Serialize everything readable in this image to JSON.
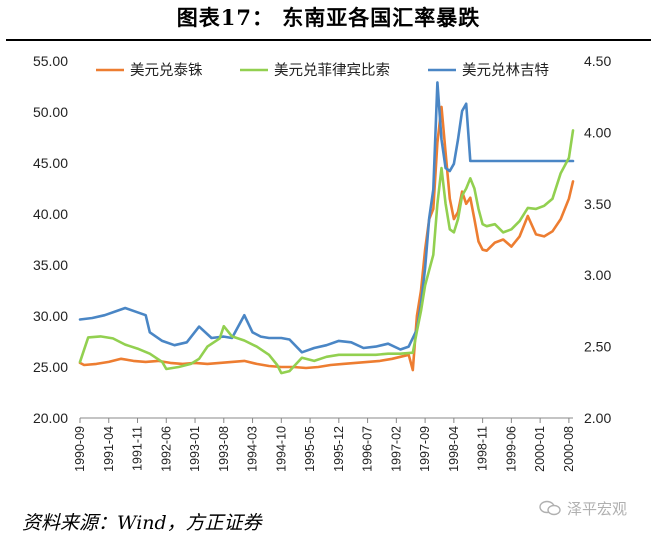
{
  "page": {
    "title": "图表17：        东南亚各国汇率暴跌",
    "source": "资料来源：Wind，方正证券",
    "watermark": "泽平宏观"
  },
  "chart_data": {
    "type": "line",
    "y_left": {
      "min": 20,
      "max": 55,
      "step": 5,
      "ticks": [
        "20.00",
        "25.00",
        "30.00",
        "35.00",
        "40.00",
        "45.00",
        "50.00",
        "55.00"
      ]
    },
    "y_right": {
      "min": 2.0,
      "max": 4.5,
      "step": 0.5,
      "ticks": [
        "2.00",
        "2.50",
        "3.00",
        "3.50",
        "4.00",
        "4.50"
      ]
    },
    "x_ticks": [
      "1990-09",
      "1991-04",
      "1991-11",
      "1992-06",
      "1993-01",
      "1993-08",
      "1994-03",
      "1994-10",
      "1995-05",
      "1995-12",
      "1996-07",
      "1997-02",
      "1997-09",
      "1998-04",
      "1998-11",
      "1999-06",
      "2000-01",
      "2000-08"
    ],
    "x_start": "1990-09",
    "x_end": "2000-09",
    "legend_position": "top",
    "grid": false,
    "series": [
      {
        "name": "美元兑泰铢",
        "axis": "left",
        "color": "#ED7D31",
        "points": [
          [
            "1990-09",
            25.4
          ],
          [
            "1990-10",
            25.2
          ],
          [
            "1991-01",
            25.3
          ],
          [
            "1991-04",
            25.5
          ],
          [
            "1991-07",
            25.8
          ],
          [
            "1991-10",
            25.6
          ],
          [
            "1992-01",
            25.5
          ],
          [
            "1992-04",
            25.6
          ],
          [
            "1992-07",
            25.4
          ],
          [
            "1992-10",
            25.3
          ],
          [
            "1993-01",
            25.4
          ],
          [
            "1993-04",
            25.3
          ],
          [
            "1993-07",
            25.4
          ],
          [
            "1993-10",
            25.5
          ],
          [
            "1994-01",
            25.6
          ],
          [
            "1994-04",
            25.3
          ],
          [
            "1994-07",
            25.1
          ],
          [
            "1994-10",
            25.0
          ],
          [
            "1995-01",
            25.0
          ],
          [
            "1995-04",
            24.9
          ],
          [
            "1995-07",
            25.0
          ],
          [
            "1995-10",
            25.2
          ],
          [
            "1996-01",
            25.3
          ],
          [
            "1996-04",
            25.4
          ],
          [
            "1996-07",
            25.5
          ],
          [
            "1996-10",
            25.6
          ],
          [
            "1997-01",
            25.8
          ],
          [
            "1997-03",
            26.0
          ],
          [
            "1997-05",
            26.2
          ],
          [
            "1997-06",
            24.7
          ],
          [
            "1997-07",
            30.0
          ],
          [
            "1997-08",
            32.5
          ],
          [
            "1997-09",
            36.5
          ],
          [
            "1997-10",
            39.5
          ],
          [
            "1997-11",
            40.5
          ],
          [
            "1997-12",
            47.0
          ],
          [
            "1998-01",
            50.5
          ],
          [
            "1998-02",
            46.0
          ],
          [
            "1998-03",
            41.5
          ],
          [
            "1998-04",
            39.5
          ],
          [
            "1998-05",
            40.2
          ],
          [
            "1998-06",
            42.2
          ],
          [
            "1998-07",
            41.0
          ],
          [
            "1998-08",
            41.6
          ],
          [
            "1998-09",
            39.5
          ],
          [
            "1998-10",
            37.3
          ],
          [
            "1998-11",
            36.5
          ],
          [
            "1998-12",
            36.4
          ],
          [
            "1999-02",
            37.2
          ],
          [
            "1999-04",
            37.5
          ],
          [
            "1999-06",
            36.8
          ],
          [
            "1999-08",
            37.8
          ],
          [
            "1999-10",
            39.8
          ],
          [
            "1999-12",
            38.0
          ],
          [
            "2000-02",
            37.8
          ],
          [
            "2000-04",
            38.3
          ],
          [
            "2000-06",
            39.5
          ],
          [
            "2000-08",
            41.5
          ],
          [
            "2000-09",
            43.2
          ]
        ]
      },
      {
        "name": "美元兑菲律宾比索",
        "axis": "left",
        "color": "#92D050",
        "points": [
          [
            "1990-09",
            25.5
          ],
          [
            "1990-11",
            27.9
          ],
          [
            "1991-02",
            28.0
          ],
          [
            "1991-05",
            27.8
          ],
          [
            "1991-08",
            27.2
          ],
          [
            "1991-11",
            26.8
          ],
          [
            "1992-02",
            26.3
          ],
          [
            "1992-05",
            25.5
          ],
          [
            "1992-06",
            24.8
          ],
          [
            "1992-09",
            25.0
          ],
          [
            "1992-12",
            25.3
          ],
          [
            "1993-02",
            25.8
          ],
          [
            "1993-04",
            27.0
          ],
          [
            "1993-07",
            27.8
          ],
          [
            "1993-08",
            29.0
          ],
          [
            "1993-10",
            28.0
          ],
          [
            "1994-01",
            27.6
          ],
          [
            "1994-04",
            27.0
          ],
          [
            "1994-07",
            26.2
          ],
          [
            "1994-09",
            25.2
          ],
          [
            "1994-10",
            24.4
          ],
          [
            "1994-12",
            24.6
          ],
          [
            "1995-03",
            25.9
          ],
          [
            "1995-06",
            25.6
          ],
          [
            "1995-09",
            26.0
          ],
          [
            "1995-12",
            26.2
          ],
          [
            "1996-03",
            26.2
          ],
          [
            "1996-06",
            26.2
          ],
          [
            "1996-09",
            26.2
          ],
          [
            "1996-12",
            26.3
          ],
          [
            "1997-03",
            26.3
          ],
          [
            "1997-06",
            26.4
          ],
          [
            "1997-07",
            28.5
          ],
          [
            "1997-08",
            30.5
          ],
          [
            "1997-09",
            33.0
          ],
          [
            "1997-10",
            34.5
          ],
          [
            "1997-11",
            36.0
          ],
          [
            "1997-12",
            41.0
          ],
          [
            "1998-01",
            44.5
          ],
          [
            "1998-02",
            41.0
          ],
          [
            "1998-03",
            38.5
          ],
          [
            "1998-04",
            38.2
          ],
          [
            "1998-05",
            39.5
          ],
          [
            "1998-06",
            41.8
          ],
          [
            "1998-07",
            42.5
          ],
          [
            "1998-08",
            43.5
          ],
          [
            "1998-09",
            42.5
          ],
          [
            "1998-10",
            40.5
          ],
          [
            "1998-11",
            39.0
          ],
          [
            "1998-12",
            38.8
          ],
          [
            "1999-02",
            39.0
          ],
          [
            "1999-04",
            38.2
          ],
          [
            "1999-06",
            38.5
          ],
          [
            "1999-08",
            39.3
          ],
          [
            "1999-10",
            40.6
          ],
          [
            "1999-12",
            40.5
          ],
          [
            "2000-02",
            40.8
          ],
          [
            "2000-04",
            41.5
          ],
          [
            "2000-06",
            44.0
          ],
          [
            "2000-08",
            45.5
          ],
          [
            "2000-09",
            48.2
          ]
        ]
      },
      {
        "name": "美元兑林吉特",
        "axis": "right",
        "color": "#4A86C5",
        "points": [
          [
            "1990-09",
            2.69
          ],
          [
            "1990-12",
            2.7
          ],
          [
            "1991-03",
            2.72
          ],
          [
            "1991-06",
            2.75
          ],
          [
            "1991-08",
            2.77
          ],
          [
            "1991-11",
            2.74
          ],
          [
            "1992-01",
            2.72
          ],
          [
            "1992-02",
            2.6
          ],
          [
            "1992-05",
            2.54
          ],
          [
            "1992-08",
            2.51
          ],
          [
            "1992-11",
            2.53
          ],
          [
            "1993-02",
            2.64
          ],
          [
            "1993-05",
            2.56
          ],
          [
            "1993-08",
            2.57
          ],
          [
            "1993-10",
            2.56
          ],
          [
            "1994-01",
            2.72
          ],
          [
            "1994-03",
            2.6
          ],
          [
            "1994-05",
            2.57
          ],
          [
            "1994-07",
            2.56
          ],
          [
            "1994-10",
            2.56
          ],
          [
            "1994-12",
            2.55
          ],
          [
            "1995-03",
            2.46
          ],
          [
            "1995-06",
            2.49
          ],
          [
            "1995-09",
            2.51
          ],
          [
            "1995-12",
            2.54
          ],
          [
            "1996-03",
            2.53
          ],
          [
            "1996-06",
            2.49
          ],
          [
            "1996-09",
            2.5
          ],
          [
            "1996-12",
            2.52
          ],
          [
            "1997-03",
            2.48
          ],
          [
            "1997-05",
            2.5
          ],
          [
            "1997-07",
            2.62
          ],
          [
            "1997-08",
            2.8
          ],
          [
            "1997-09",
            3.05
          ],
          [
            "1997-10",
            3.4
          ],
          [
            "1997-11",
            3.6
          ],
          [
            "1997-12",
            4.35
          ],
          [
            "1998-01",
            3.95
          ],
          [
            "1998-02",
            3.75
          ],
          [
            "1998-03",
            3.73
          ],
          [
            "1998-04",
            3.78
          ],
          [
            "1998-05",
            3.95
          ],
          [
            "1998-06",
            4.15
          ],
          [
            "1998-07",
            4.2
          ],
          [
            "1998-08",
            3.8
          ],
          [
            "2000-09",
            3.8
          ]
        ]
      }
    ]
  }
}
